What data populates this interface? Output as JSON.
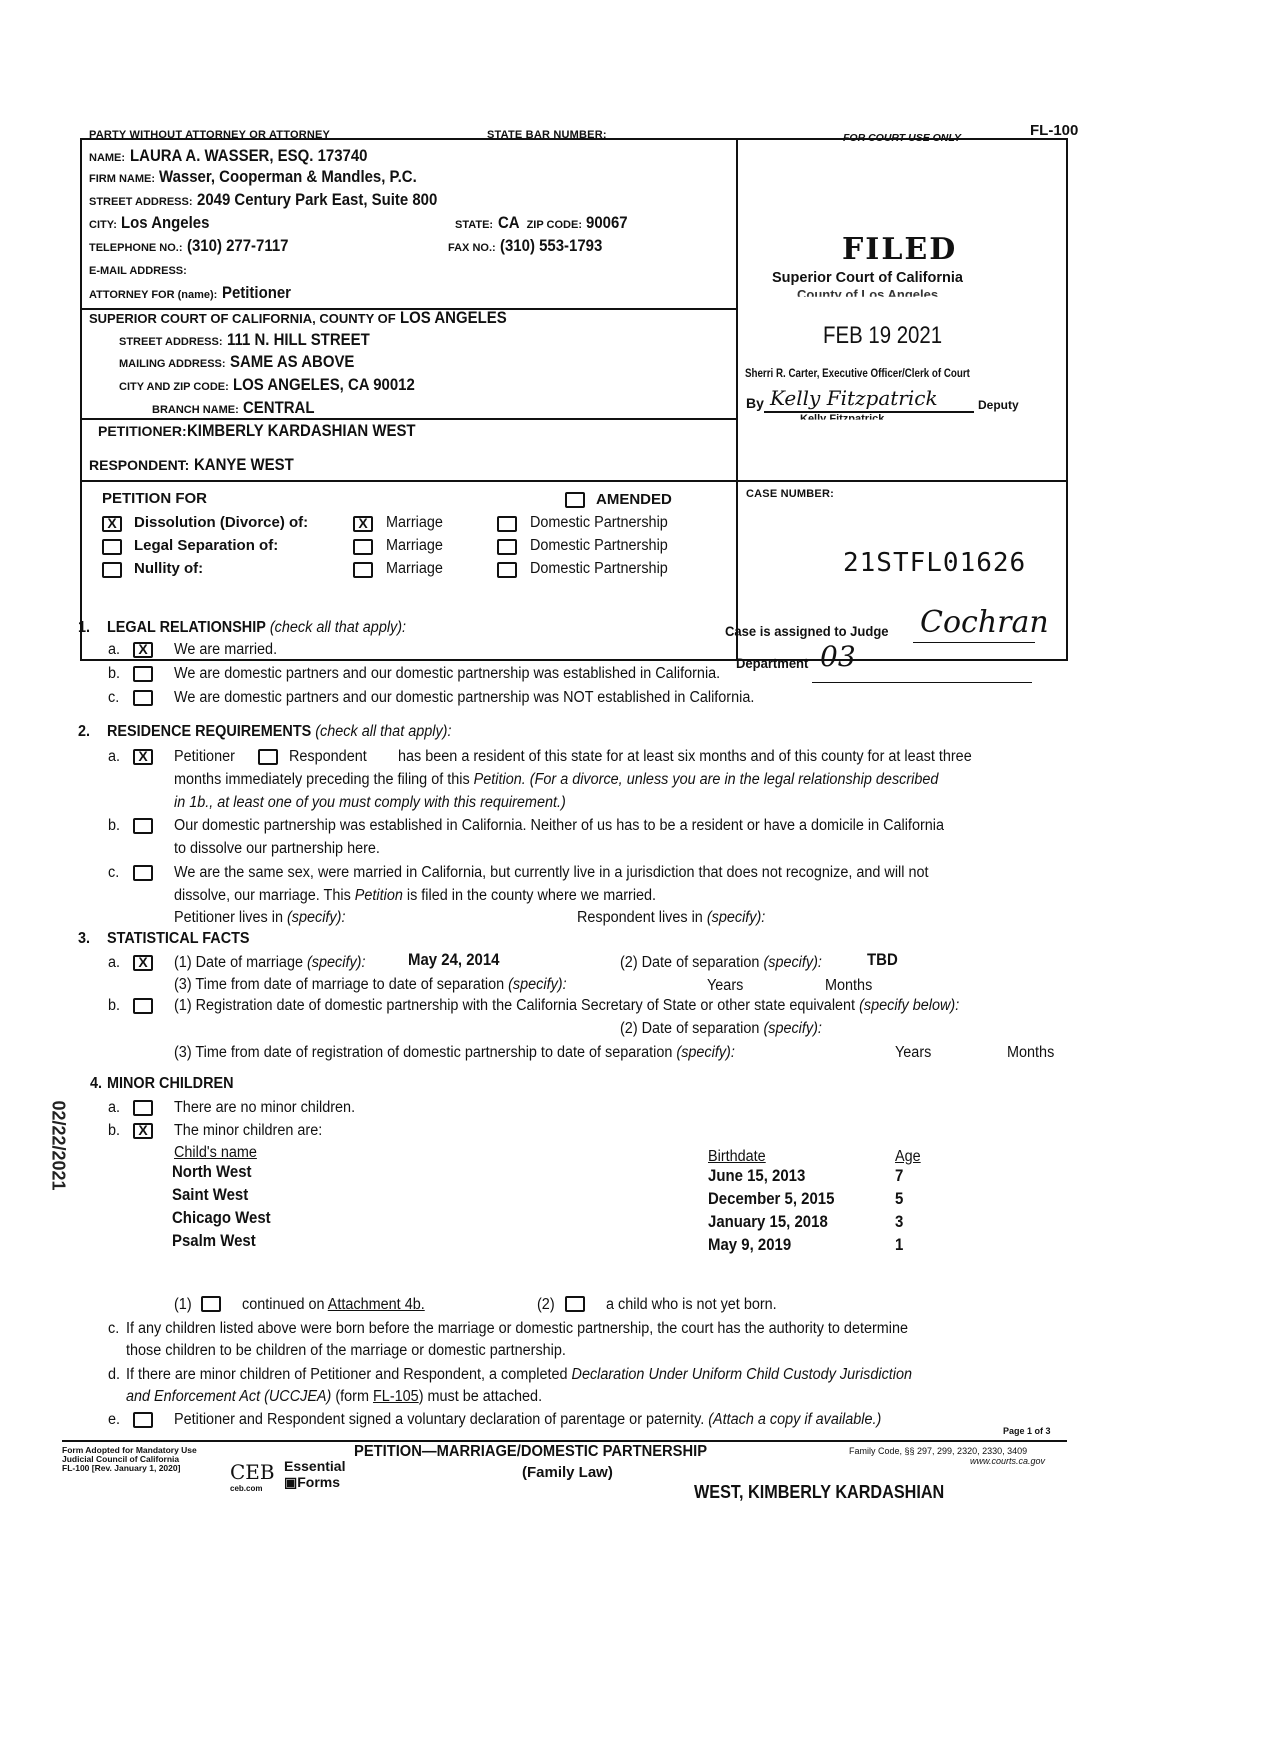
{
  "form_id": "FL-100",
  "attorney": {
    "header": "PARTY WITHOUT ATTORNEY OR ATTORNEY",
    "bar_label": "STATE BAR NUMBER:",
    "name_label": "NAME:",
    "name": "LAURA A. WASSER, ESQ. 173740",
    "firm_label": "FIRM NAME:",
    "firm": "Wasser, Cooperman & Mandles, P.C.",
    "street_label": "STREET ADDRESS:",
    "street": "2049 Century Park East, Suite 800",
    "city_label": "CITY:",
    "city": "Los Angeles",
    "state_label": "STATE:",
    "state": "CA",
    "zip_label": "ZIP CODE:",
    "zip": "90067",
    "phone_label": "TELEPHONE NO.:",
    "phone": "(310) 277-7117",
    "fax_label": "FAX NO.:",
    "fax": "(310) 553-1793",
    "email_label": "E-MAIL ADDRESS:",
    "for_label": "ATTORNEY FOR (name):",
    "for": "Petitioner"
  },
  "court": {
    "header": "SUPERIOR COURT OF CALIFORNIA, COUNTY OF",
    "county": "LOS ANGELES",
    "street_label": "STREET ADDRESS:",
    "street": "111 N. HILL STREET",
    "mailing_label": "MAILING ADDRESS:",
    "mailing": "SAME AS ABOVE",
    "cityzip_label": "CITY AND ZIP CODE:",
    "cityzip": "LOS ANGELES, CA 90012",
    "branch_label": "BRANCH NAME:",
    "branch": "CENTRAL"
  },
  "parties": {
    "petitioner_label": "PETITIONER:",
    "petitioner": "KIMBERLY KARDASHIAN WEST",
    "respondent_label": "RESPONDENT:",
    "respondent": "KANYE WEST"
  },
  "court_use": {
    "label": "FOR COURT USE ONLY",
    "stamp_filed": "FILED",
    "stamp_court": "Superior Court of California",
    "stamp_county": "County of Los Angeles",
    "stamp_date": "FEB 19 2021",
    "stamp_clerk": "Sherri R. Carter, Executive Officer/Clerk of Court",
    "stamp_by": "By",
    "stamp_signature": "Kelly Fitzpatrick",
    "stamp_deputy": "Deputy",
    "stamp_name": "Kelly Fitzpatrick"
  },
  "petition_for": {
    "title": "PETITION FOR",
    "amended": "AMENDED",
    "rows": [
      {
        "label": "Dissolution (Divorce) of:",
        "checked": true,
        "marriage": "Marriage",
        "marriage_checked": true,
        "dp": "Domestic Partnership"
      },
      {
        "label": "Legal Separation of:",
        "checked": false,
        "marriage": "Marriage",
        "marriage_checked": false,
        "dp": "Domestic Partnership"
      },
      {
        "label": "Nullity of:",
        "checked": false,
        "marriage": "Marriage",
        "marriage_checked": false,
        "dp": "Domestic Partnership"
      }
    ],
    "check_mark": "X"
  },
  "case": {
    "label": "CASE NUMBER:",
    "number": "21STFL01626",
    "judge_label": "Case is assigned to Judge",
    "judge": "Cochran",
    "dept_label": "Department",
    "dept": "03"
  },
  "s1": {
    "num": "1.",
    "title": "LEGAL RELATIONSHIP",
    "hint": "(check all that apply):",
    "a": "We are married.",
    "b": "We are domestic partners and our domestic partnership was established in California.",
    "c": "We are domestic partners and our domestic partnership was NOT established in California."
  },
  "s2": {
    "num": "2.",
    "title": "RESIDENCE REQUIREMENTS",
    "hint": "(check all that apply):",
    "a_pet": "Petitioner",
    "a_resp": "Respondent",
    "a1": "has been a resident of this state for at least six months and of this county for at least three",
    "a2a": "months immediately preceding the filing of this ",
    "a2b": "Petition.",
    "a2c": " (For a divorce, unless you are in the legal relationship described",
    "a3": "in 1b., at least one of you must comply with this requirement.)",
    "b1": "Our domestic partnership was established in California. Neither of us has to be a resident or have a domicile in California",
    "b2": "to dissolve our partnership here.",
    "c1": "We are the same sex, were married in California, but currently live in a jurisdiction that does not recognize, and will not",
    "c2a": "dissolve, our marriage. This ",
    "c2b": "Petition",
    "c2c": " is filed in the county where we married.",
    "pet_lives": "Petitioner lives in",
    "resp_lives": "Respondent lives in",
    "specify": "(specify):"
  },
  "s3": {
    "num": "3.",
    "title": "STATISTICAL FACTS",
    "a1": "(1) Date of marriage",
    "marriage_date": "May 24, 2014",
    "a2": "(2) Date of separation",
    "separation": "TBD",
    "a3": "(3) Time from date of marriage to date of separation",
    "years": "Years",
    "months": "Months",
    "specify": "(specify):",
    "b1": "(1) Registration date of domestic partnership with the California Secretary of State or other state equivalent",
    "b1_hint": "(specify below):",
    "b2": "(2) Date of separation",
    "b3": "(3) Time from date of registration of domestic partnership to date of separation"
  },
  "s4": {
    "num": "4.",
    "title": "MINOR CHILDREN",
    "a": "There are no minor children.",
    "b": "The minor children are:",
    "headers": {
      "name": "Child's name",
      "birthdate": "Birthdate",
      "age": "Age"
    },
    "children": [
      {
        "name": "North West",
        "birthdate": "June 15, 2013",
        "age": "7"
      },
      {
        "name": "Saint West",
        "birthdate": "December 5, 2015",
        "age": "5"
      },
      {
        "name": "Chicago West",
        "birthdate": "January 15, 2018",
        "age": "3"
      },
      {
        "name": "Psalm West",
        "birthdate": "May 9, 2019",
        "age": "1"
      }
    ],
    "opt1_num": "(1)",
    "opt1a": "continued on ",
    "opt1b": "Attachment 4b.",
    "opt2_num": "(2)",
    "opt2": "a child who is not yet born.",
    "c1": "If any children listed above were born before the marriage or domestic partnership, the court has the authority to determine",
    "c2": "those children to be children of the marriage or domestic partnership.",
    "d1a": "If there are minor children of Petitioner and Respondent, a completed ",
    "d1b": "Declaration Under Uniform Child Custody Jurisdiction",
    "d2a": "and Enforcement Act (UCCJEA)",
    "d2b": " (form ",
    "d2c": "FL-105",
    "d2d": ") must be attached.",
    "e1": "Petitioner and Respondent signed a voluntary declaration of parentage or paternity. ",
    "e2": "(Attach a copy if available.)"
  },
  "footer": {
    "page": "Page 1 of 3",
    "adopted1": "Form Adopted for Mandatory Use",
    "adopted2": "Judicial Council of California",
    "adopted3": "FL-100 [Rev. January 1, 2020]",
    "logo_ceb": "CEB",
    "logo_site": "ceb.com",
    "logo_essential": "Essential",
    "logo_forms": "Forms",
    "title": "PETITION—MARRIAGE/DOMESTIC PARTNERSHIP",
    "subtitle": "(Family Law)",
    "codes": "Family Code, §§ 297, 299, 2320, 2330, 3409",
    "site": "www.courts.ca.gov",
    "case_name": "WEST, KIMBERLY KARDASHIAN"
  },
  "margin_stamp": "02/22/2021"
}
